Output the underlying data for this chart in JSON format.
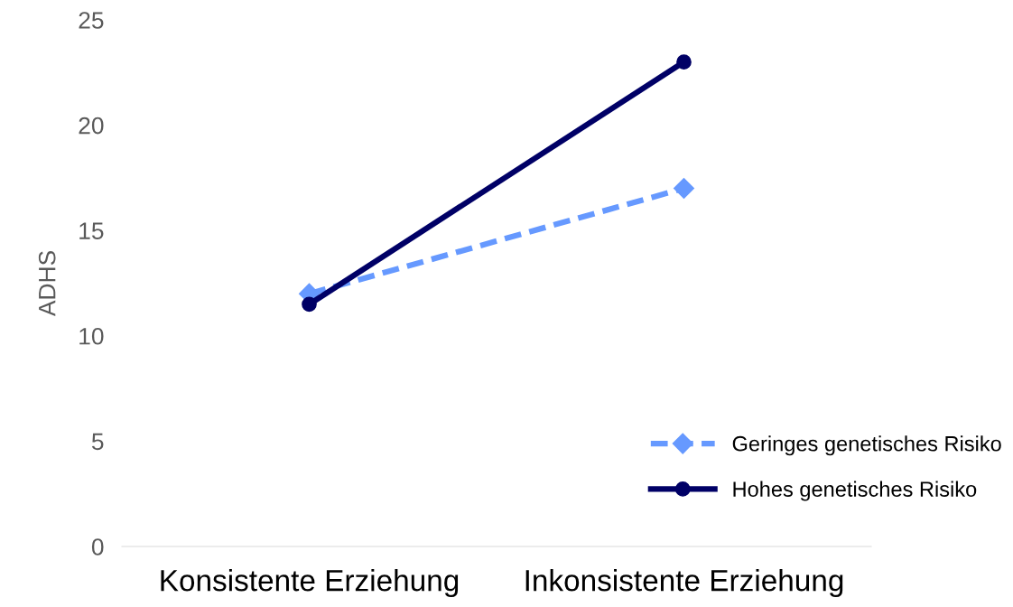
{
  "chart_data": {
    "type": "line",
    "ylabel": "ADHS",
    "categories": [
      "Konsistente Erziehung",
      "Inkonsistente Erziehung"
    ],
    "series": [
      {
        "name": "Geringes genetisches Risiko",
        "color": "#6699ff",
        "values": [
          12,
          17
        ],
        "marker": "diamond",
        "line_style": "dashed"
      },
      {
        "name": "Hohes genetisches Risiko",
        "color": "#000066",
        "values": [
          11.5,
          23
        ],
        "marker": "circle",
        "line_style": "solid"
      }
    ],
    "ylim": [
      0,
      25
    ],
    "yticks": [
      0,
      5,
      10,
      15,
      20,
      25
    ],
    "grid": false,
    "legend": "bottom right"
  }
}
